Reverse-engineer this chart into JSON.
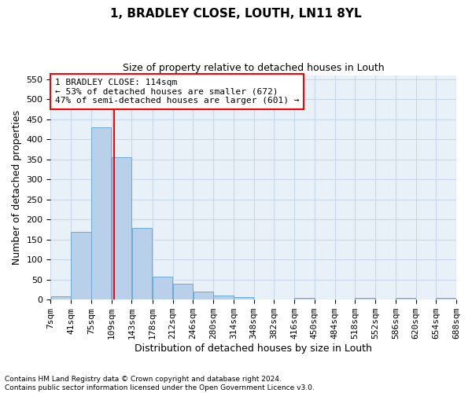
{
  "title": "1, BRADLEY CLOSE, LOUTH, LN11 8YL",
  "subtitle": "Size of property relative to detached houses in Louth",
  "xlabel": "Distribution of detached houses by size in Louth",
  "ylabel": "Number of detached properties",
  "footnote": "Contains HM Land Registry data © Crown copyright and database right 2024.\nContains public sector information licensed under the Open Government Licence v3.0.",
  "bin_edges": [
    7,
    41,
    75,
    109,
    143,
    178,
    212,
    246,
    280,
    314,
    348,
    382,
    416,
    450,
    484,
    518,
    552,
    586,
    620,
    654,
    688
  ],
  "bar_heights": [
    8,
    170,
    430,
    355,
    178,
    57,
    40,
    20,
    11,
    6,
    0,
    0,
    5,
    0,
    0,
    4,
    0,
    4,
    0,
    4
  ],
  "bar_color": "#b8d0ea",
  "bar_edgecolor": "#6aaad4",
  "grid_color": "#c8d8ea",
  "background_color": "#e8f0f8",
  "vline_x": 114,
  "vline_color": "red",
  "ylim": [
    0,
    560
  ],
  "yticks": [
    0,
    50,
    100,
    150,
    200,
    250,
    300,
    350,
    400,
    450,
    500,
    550
  ],
  "x_tick_labels": [
    "7sqm",
    "41sqm",
    "75sqm",
    "109sqm",
    "143sqm",
    "178sqm",
    "212sqm",
    "246sqm",
    "280sqm",
    "314sqm",
    "348sqm",
    "382sqm",
    "416sqm",
    "450sqm",
    "484sqm",
    "518sqm",
    "552sqm",
    "586sqm",
    "620sqm",
    "654sqm",
    "688sqm"
  ],
  "annotation_text": "1 BRADLEY CLOSE: 114sqm\n← 53% of detached houses are smaller (672)\n47% of semi-detached houses are larger (601) →",
  "title_fontsize": 11,
  "subtitle_fontsize": 9,
  "ylabel_fontsize": 9,
  "xlabel_fontsize": 9,
  "tick_fontsize": 8,
  "footnote_fontsize": 6.5
}
